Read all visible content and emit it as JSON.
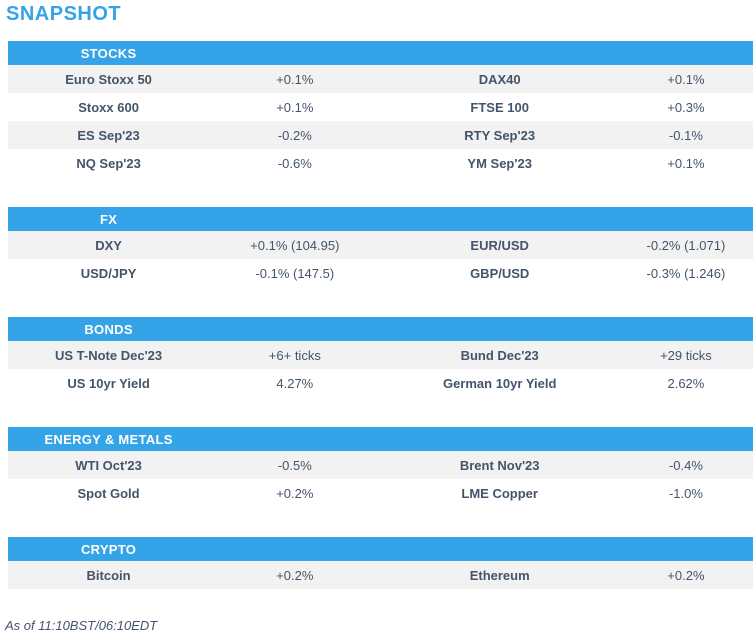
{
  "page": {
    "title": "SNAPSHOT",
    "footer": "As of 11:10BST/06:10EDT"
  },
  "colors": {
    "accent_blue": "#35a3e8",
    "header_text": "#ffffff",
    "alt_row_bg": "#f2f2f2",
    "body_text": "#44546a"
  },
  "sections": [
    {
      "title": "STOCKS",
      "rows": [
        {
          "left_label": "Euro Stoxx 50",
          "left_value": "+0.1%",
          "right_label": "DAX40",
          "right_value": "+0.1%"
        },
        {
          "left_label": "Stoxx 600",
          "left_value": "+0.1%",
          "right_label": "FTSE 100",
          "right_value": "+0.3%"
        },
        {
          "left_label": "ES Sep'23",
          "left_value": "-0.2%",
          "right_label": "RTY Sep'23",
          "right_value": "-0.1%"
        },
        {
          "left_label": "NQ Sep'23",
          "left_value": "-0.6%",
          "right_label": "YM Sep'23",
          "right_value": "+0.1%"
        }
      ]
    },
    {
      "title": "FX",
      "rows": [
        {
          "left_label": "DXY",
          "left_value": "+0.1% (104.95)",
          "right_label": "EUR/USD",
          "right_value": "-0.2% (1.071)"
        },
        {
          "left_label": "USD/JPY",
          "left_value": "-0.1% (147.5)",
          "right_label": "GBP/USD",
          "right_value": "-0.3% (1.246)"
        }
      ]
    },
    {
      "title": "BONDS",
      "rows": [
        {
          "left_label": "US T-Note Dec'23",
          "left_value": "+6+ ticks",
          "right_label": "Bund Dec'23",
          "right_value": "+29 ticks"
        },
        {
          "left_label": "US 10yr Yield",
          "left_value": "4.27%",
          "right_label": "German 10yr Yield",
          "right_value": "2.62%"
        }
      ]
    },
    {
      "title": "ENERGY & METALS",
      "rows": [
        {
          "left_label": "WTI Oct'23",
          "left_value": "-0.5%",
          "right_label": "Brent Nov'23",
          "right_value": "-0.4%"
        },
        {
          "left_label": "Spot Gold",
          "left_value": "+0.2%",
          "right_label": "LME Copper",
          "right_value": "-1.0%"
        }
      ]
    },
    {
      "title": "CRYPTO",
      "rows": [
        {
          "left_label": "Bitcoin",
          "left_value": "+0.2%",
          "right_label": "Ethereum",
          "right_value": "+0.2%"
        }
      ]
    }
  ]
}
